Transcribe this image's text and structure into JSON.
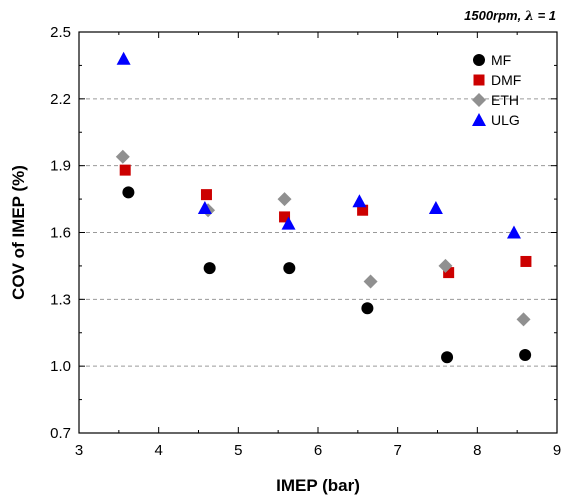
{
  "chart_data": {
    "type": "scatter",
    "title": "",
    "annotation": {
      "text_prefix": "1500rpm, ",
      "symbol": "λ",
      "text_suffix": " = 1"
    },
    "xlabel": "IMEP (bar)",
    "ylabel": "COV of IMEP (%)",
    "xlim": [
      3,
      9
    ],
    "ylim": [
      0.7,
      2.5
    ],
    "xticks": [
      3,
      4,
      5,
      6,
      7,
      8,
      9
    ],
    "yticks": [
      0.7,
      1.0,
      1.3,
      1.6,
      1.9,
      2.2,
      2.5
    ],
    "ytick_labels": [
      "0.7",
      "1.0",
      "1.3",
      "1.6",
      "1.9",
      "2.2",
      "2.5"
    ],
    "grid": "horizontal-dashed",
    "legend_position": "top-right",
    "series": [
      {
        "name": "MF",
        "marker": "circle",
        "color": "#000000",
        "points": [
          [
            3.62,
            1.78
          ],
          [
            4.64,
            1.44
          ],
          [
            5.64,
            1.44
          ],
          [
            6.62,
            1.26
          ],
          [
            7.62,
            1.04
          ],
          [
            8.6,
            1.05
          ]
        ]
      },
      {
        "name": "DMF",
        "marker": "square",
        "color": "#cc0000",
        "points": [
          [
            3.58,
            1.88
          ],
          [
            4.6,
            1.77
          ],
          [
            5.58,
            1.67
          ],
          [
            6.56,
            1.7
          ],
          [
            7.64,
            1.42
          ],
          [
            8.61,
            1.47
          ]
        ]
      },
      {
        "name": "ETH",
        "marker": "diamond",
        "color": "#909090",
        "points": [
          [
            3.55,
            1.94
          ],
          [
            4.62,
            1.7
          ],
          [
            5.58,
            1.75
          ],
          [
            6.66,
            1.38
          ],
          [
            7.6,
            1.45
          ],
          [
            8.58,
            1.21
          ]
        ]
      },
      {
        "name": "ULG",
        "marker": "triangle",
        "color": "#0000ff",
        "points": [
          [
            3.56,
            2.38
          ],
          [
            4.58,
            1.71
          ],
          [
            5.63,
            1.64
          ],
          [
            6.52,
            1.74
          ],
          [
            7.48,
            1.71
          ],
          [
            8.46,
            1.6
          ]
        ]
      }
    ]
  }
}
